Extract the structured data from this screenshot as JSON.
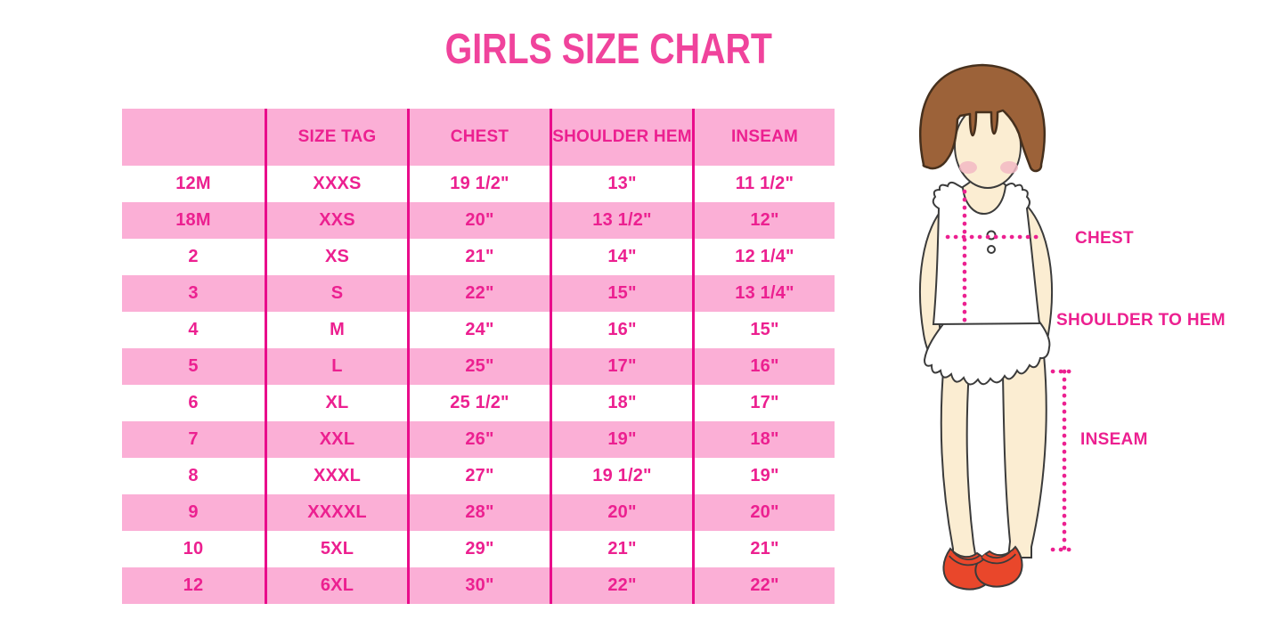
{
  "title": "GIRLS SIZE CHART",
  "colors": {
    "title_pink": "#F0439C",
    "accent_pink": "#EC2090",
    "divider_pink": "#E90C8B",
    "band_pink": "#FBAFD6",
    "skin": "#FBEDD2",
    "hair_brown": "#9C6239",
    "shoe_red": "#E9472B",
    "blush_pink": "#F2B8C4"
  },
  "chart_data": {
    "type": "table",
    "title": "GIRLS SIZE CHART",
    "columns": [
      "",
      "SIZE TAG",
      "CHEST",
      "SHOULDER HEM",
      "INSEAM"
    ],
    "rows": [
      [
        "12M",
        "XXXS",
        "19 1/2\"",
        "13\"",
        "11 1/2\""
      ],
      [
        "18M",
        "XXS",
        "20\"",
        "13 1/2\"",
        "12\""
      ],
      [
        "2",
        "XS",
        "21\"",
        "14\"",
        "12 1/4\""
      ],
      [
        "3",
        "S",
        "22\"",
        "15\"",
        "13 1/4\""
      ],
      [
        "4",
        "M",
        "24\"",
        "16\"",
        "15\""
      ],
      [
        "5",
        "L",
        "25\"",
        "17\"",
        "16\""
      ],
      [
        "6",
        "XL",
        "25 1/2\"",
        "18\"",
        "17\""
      ],
      [
        "7",
        "XXL",
        "26\"",
        "19\"",
        "18\""
      ],
      [
        "8",
        "XXXL",
        "27\"",
        "19 1/2\"",
        "19\""
      ],
      [
        "9",
        "XXXXL",
        "28\"",
        "20\"",
        "20\""
      ],
      [
        "10",
        "5XL",
        "29\"",
        "21\"",
        "21\""
      ],
      [
        "12",
        "6XL",
        "30\"",
        "22\"",
        "22\""
      ]
    ],
    "layout_hints": {
      "striped": true,
      "stripe_colors": [
        "#FFFFFF",
        "#FBAFD6"
      ],
      "header_background": "#FBAFD6",
      "column_dividers": true
    }
  },
  "figure": {
    "chest_label": "CHEST",
    "shoulder_label": "SHOULDER TO HEM",
    "inseam_label": "INSEAM"
  }
}
